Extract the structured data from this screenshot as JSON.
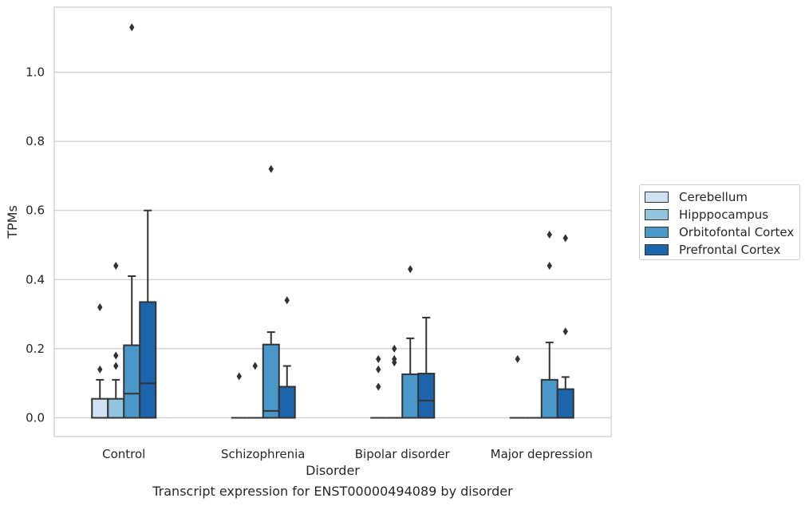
{
  "chart_data": {
    "type": "box",
    "caption": "Transcript expression for ENST00000494089 by disorder",
    "xlabel": "Disorder",
    "ylabel": "TPMs",
    "ylim": [
      -0.055,
      1.19
    ],
    "yticks": [
      "0.0",
      "0.2",
      "0.4",
      "0.6",
      "0.8",
      "1.0"
    ],
    "grid": true,
    "legend_position": "right",
    "categories": [
      "Control",
      "Schizophrenia",
      "Bipolar disorder",
      "Major depression"
    ],
    "series": [
      {
        "name": "Cerebellum",
        "color": "#cfe1f2",
        "boxes": [
          {
            "q1": 0.0,
            "median": 0.0,
            "q3": 0.055,
            "whisker_low": 0.0,
            "whisker_high": 0.11,
            "outliers": [
              0.14,
              0.32
            ]
          },
          {
            "q1": 0.0,
            "median": 0.0,
            "q3": 0.0,
            "whisker_low": 0.0,
            "whisker_high": 0.0,
            "outliers": [
              0.12
            ]
          },
          {
            "q1": 0.0,
            "median": 0.0,
            "q3": 0.0,
            "whisker_low": 0.0,
            "whisker_high": 0.0,
            "outliers": [
              0.09,
              0.14,
              0.17
            ]
          },
          {
            "q1": 0.0,
            "median": 0.0,
            "q3": 0.0,
            "whisker_low": 0.0,
            "whisker_high": 0.0,
            "outliers": [
              0.17
            ]
          }
        ]
      },
      {
        "name": "Hipppocampus",
        "color": "#93c4de",
        "boxes": [
          {
            "q1": 0.0,
            "median": 0.0,
            "q3": 0.055,
            "whisker_low": 0.0,
            "whisker_high": 0.11,
            "outliers": [
              0.15,
              0.18,
              0.44
            ]
          },
          {
            "q1": 0.0,
            "median": 0.0,
            "q3": 0.0,
            "whisker_low": 0.0,
            "whisker_high": 0.0,
            "outliers": [
              0.15
            ]
          },
          {
            "q1": 0.0,
            "median": 0.0,
            "q3": 0.0,
            "whisker_low": 0.0,
            "whisker_high": 0.0,
            "outliers": [
              0.16,
              0.17,
              0.2
            ]
          },
          {
            "q1": 0.0,
            "median": 0.0,
            "q3": 0.0,
            "whisker_low": 0.0,
            "whisker_high": 0.0,
            "outliers": []
          }
        ]
      },
      {
        "name": "Orbitofontal Cortex",
        "color": "#4a98c9",
        "boxes": [
          {
            "q1": 0.0,
            "median": 0.07,
            "q3": 0.21,
            "whisker_low": 0.0,
            "whisker_high": 0.41,
            "outliers": [
              1.13
            ]
          },
          {
            "q1": 0.0,
            "median": 0.02,
            "q3": 0.212,
            "whisker_low": 0.0,
            "whisker_high": 0.248,
            "outliers": [
              0.72
            ]
          },
          {
            "q1": 0.0,
            "median": 0.0,
            "q3": 0.126,
            "whisker_low": 0.0,
            "whisker_high": 0.23,
            "outliers": [
              0.43
            ]
          },
          {
            "q1": 0.0,
            "median": 0.0,
            "q3": 0.11,
            "whisker_low": 0.0,
            "whisker_high": 0.218,
            "outliers": [
              0.44,
              0.53
            ]
          }
        ]
      },
      {
        "name": "Prefrontal Cortex",
        "color": "#1c64ab",
        "boxes": [
          {
            "q1": 0.0,
            "median": 0.1,
            "q3": 0.335,
            "whisker_low": 0.0,
            "whisker_high": 0.6,
            "outliers": []
          },
          {
            "q1": 0.0,
            "median": 0.0,
            "q3": 0.09,
            "whisker_low": 0.0,
            "whisker_high": 0.15,
            "outliers": [
              0.34
            ]
          },
          {
            "q1": 0.0,
            "median": 0.05,
            "q3": 0.128,
            "whisker_low": 0.0,
            "whisker_high": 0.29,
            "outliers": []
          },
          {
            "q1": 0.0,
            "median": 0.0,
            "q3": 0.083,
            "whisker_low": 0.0,
            "whisker_high": 0.118,
            "outliers": [
              0.25,
              0.52
            ]
          }
        ]
      }
    ]
  }
}
